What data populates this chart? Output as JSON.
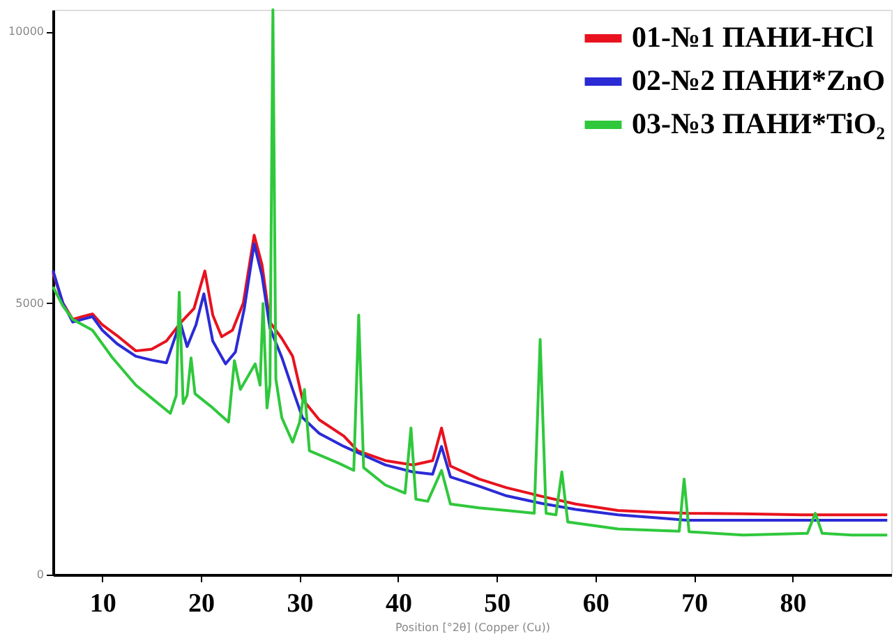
{
  "chart_data": {
    "type": "line",
    "xlabel": "Position [°2θ] (Copper (Cu))",
    "xlim": [
      5,
      90
    ],
    "ylim": [
      0,
      10400
    ],
    "xticks": [
      10,
      20,
      30,
      40,
      50,
      60,
      70,
      80
    ],
    "yticks": [
      0,
      5000,
      10000
    ],
    "grid": false,
    "legend": "top right",
    "marker": "none",
    "line_style": "solid",
    "series": [
      {
        "name": "01-№1 ПАНИ-HCl",
        "color": "#e8121e",
        "x": [
          5,
          6,
          7,
          8,
          9,
          10,
          11.5,
          13.4,
          15,
          16.5,
          18,
          19.3,
          20.4,
          21.2,
          22.1,
          23.2,
          24.3,
          25.4,
          26.2,
          27.0,
          28.2,
          29.3,
          30.3,
          32,
          34.5,
          35.9,
          38.7,
          41.5,
          43.5,
          44.4,
          45.3,
          48.2,
          51,
          54.6,
          58,
          62.3,
          66,
          69.3,
          75,
          81,
          85,
          89.6
        ],
        "values": [
          5560,
          5000,
          4700,
          4750,
          4800,
          4600,
          4400,
          4120,
          4150,
          4300,
          4650,
          4900,
          5590,
          4780,
          4380,
          4500,
          5000,
          6250,
          5700,
          4650,
          4350,
          4020,
          3230,
          2850,
          2550,
          2280,
          2100,
          2020,
          2100,
          2700,
          2000,
          1760,
          1600,
          1440,
          1300,
          1180,
          1150,
          1130,
          1120,
          1100,
          1100,
          1100
        ]
      },
      {
        "name": "02-№2 ПАНИ*ZnO",
        "color": "#2b2bd6",
        "x": [
          5,
          6,
          7,
          8,
          9,
          10,
          11.5,
          13.4,
          15,
          16.5,
          17.9,
          18.6,
          19.5,
          20.3,
          21.2,
          22.5,
          23.5,
          24.4,
          25.4,
          26.2,
          27.0,
          28.2,
          29.3,
          30.3,
          32,
          34.5,
          38.7,
          41.5,
          43.5,
          44.4,
          45.3,
          48.2,
          51,
          54.6,
          58,
          62.3,
          66,
          69.3,
          75,
          81,
          85,
          89.6
        ],
        "values": [
          5600,
          5000,
          4650,
          4700,
          4750,
          4500,
          4250,
          4020,
          3950,
          3900,
          4650,
          4200,
          4600,
          5170,
          4300,
          3880,
          4100,
          4900,
          6090,
          5500,
          4540,
          4000,
          3410,
          2890,
          2600,
          2360,
          2020,
          1890,
          1850,
          2360,
          1800,
          1630,
          1450,
          1310,
          1200,
          1100,
          1050,
          1000,
          1000,
          1000,
          1000,
          1000
        ]
      },
      {
        "name": "03-№3 ПАНИ*TiO₂",
        "color": "#2fc83c",
        "x": [
          5,
          6,
          7,
          8,
          9,
          10,
          11,
          13.4,
          15,
          16.9,
          17.5,
          17.8,
          18.2,
          18.6,
          19.0,
          19.4,
          21,
          22.8,
          23.4,
          24,
          25.5,
          26.0,
          26.3,
          26.7,
          27.0,
          27.3,
          27.6,
          28.2,
          29.3,
          30.0,
          30.5,
          31,
          34,
          35.5,
          36.0,
          36.5,
          38.7,
          40.7,
          41.3,
          41.8,
          43,
          44.4,
          45.3,
          48.2,
          51,
          53.8,
          54.4,
          55,
          56,
          56.6,
          57.2,
          62.3,
          68.5,
          69.0,
          69.5,
          75,
          81.5,
          82.3,
          83,
          86,
          89.6
        ],
        "values": [
          5300,
          4950,
          4700,
          4600,
          4500,
          4250,
          4000,
          3490,
          3250,
          2970,
          3300,
          5200,
          3150,
          3300,
          3990,
          3330,
          3100,
          2810,
          3940,
          3410,
          3880,
          3490,
          4990,
          3070,
          3500,
          10400,
          3600,
          2890,
          2440,
          2800,
          3410,
          2280,
          2050,
          1920,
          4780,
          1970,
          1650,
          1500,
          2700,
          1390,
          1350,
          1920,
          1300,
          1230,
          1180,
          1130,
          4330,
          1130,
          1100,
          1890,
          970,
          840,
          800,
          1760,
          790,
          730,
          760,
          1130,
          760,
          730,
          730
        ]
      }
    ]
  }
}
